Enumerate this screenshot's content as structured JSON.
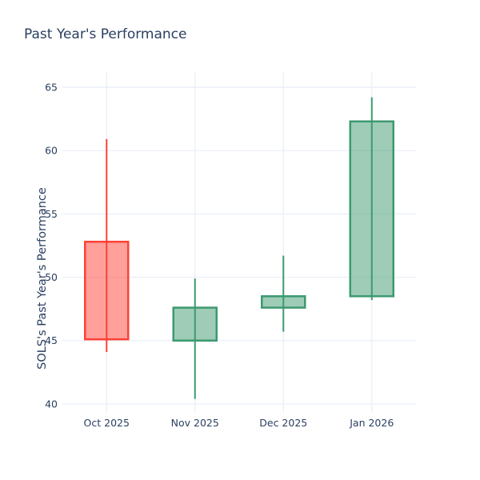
{
  "chart": {
    "background_color": "#ffffff",
    "text_color": "#2a3f5f",
    "grid_color": "#ebf0f8",
    "increasing_line_color": "#3d9970",
    "increasing_fill_color": "rgba(61,153,112,0.5)",
    "decreasing_line_color": "#ff4136",
    "decreasing_fill_color": "rgba(255,65,54,0.5)"
  },
  "chart_data": {
    "type": "candlestick",
    "title": "Past Year's Performance",
    "xlabel": "",
    "ylabel": "SOLS's Past Year's Performance",
    "categories": [
      "Oct 2025",
      "Nov 2025",
      "Dec 2025",
      "Jan 2026"
    ],
    "series": [
      {
        "name": "Oct 2025",
        "open": 52.8,
        "high": 60.9,
        "low": 44.1,
        "close": 45.1,
        "direction": "decreasing"
      },
      {
        "name": "Nov 2025",
        "open": 45.0,
        "high": 49.9,
        "low": 40.4,
        "close": 47.6,
        "direction": "increasing"
      },
      {
        "name": "Dec 2025",
        "open": 47.6,
        "high": 51.7,
        "low": 45.7,
        "close": 48.5,
        "direction": "increasing"
      },
      {
        "name": "Jan 2026",
        "open": 48.5,
        "high": 64.2,
        "low": 48.2,
        "close": 62.3,
        "direction": "increasing"
      }
    ],
    "yticks": [
      40,
      45,
      50,
      55,
      60,
      65
    ],
    "ylim": [
      39.3,
      66.2
    ],
    "grid": true,
    "legend": false
  }
}
